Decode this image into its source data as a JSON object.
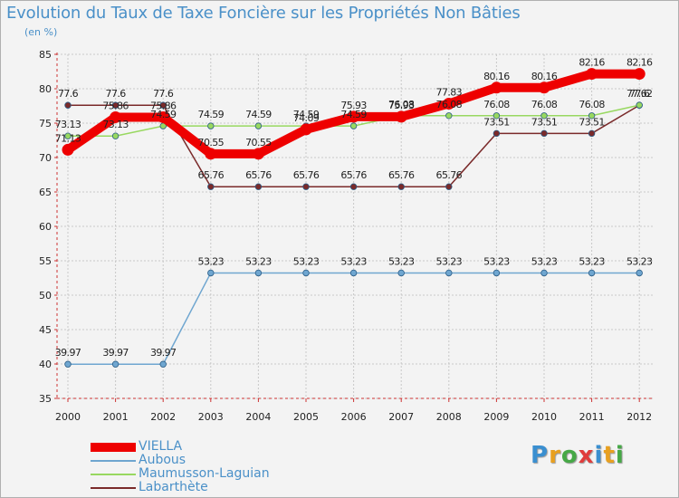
{
  "title": "Evolution du Taux de Taxe Foncière sur les Propriétés Non Bâties",
  "unit": "(en %)",
  "logo": "Proxiti",
  "logo_letters": [
    {
      "ch": "P",
      "color": "#3a8fd0"
    },
    {
      "ch": "r",
      "color": "#e8a020"
    },
    {
      "ch": "o",
      "color": "#46a846"
    },
    {
      "ch": "x",
      "color": "#e03c3c"
    },
    {
      "ch": "i",
      "color": "#3a8fd0"
    },
    {
      "ch": "t",
      "color": "#e8a020"
    },
    {
      "ch": "i",
      "color": "#46a846"
    }
  ],
  "chart_data": {
    "type": "line",
    "x": [
      "2000",
      "2001",
      "2002",
      "2003",
      "2004",
      "2005",
      "2006",
      "2007",
      "2008",
      "2009",
      "2010",
      "2011",
      "2012"
    ],
    "ylim": [
      35,
      85
    ],
    "yticks": [
      35,
      40,
      45,
      50,
      55,
      60,
      65,
      70,
      75,
      80,
      85
    ],
    "grid": true,
    "series": [
      {
        "name": "VIELLA",
        "color": "#ee0000",
        "values": [
          71.13,
          75.86,
          75.86,
          70.55,
          70.55,
          74.09,
          75.93,
          75.93,
          77.83,
          80.16,
          80.16,
          82.16,
          82.16
        ],
        "labels": [
          "71.13",
          "75.86",
          "75.86",
          "70.55",
          "70.55",
          "74.09",
          "75.93",
          "75.93",
          "77.83",
          "80.16",
          "80.16",
          "82.16",
          "82.16"
        ]
      },
      {
        "name": "Aubous",
        "color": "#6fa6d0",
        "values": [
          39.97,
          39.97,
          39.97,
          53.23,
          53.23,
          53.23,
          53.23,
          53.23,
          53.23,
          53.23,
          53.23,
          53.23,
          53.23
        ],
        "labels": [
          "39.97",
          "39.97",
          "39.97",
          "53.23",
          "53.23",
          "53.23",
          "53.23",
          "53.23",
          "53.23",
          "53.23",
          "53.23",
          "53.23",
          "53.23"
        ]
      },
      {
        "name": "Maumusson-Laguian",
        "color": "#98d860",
        "values": [
          73.13,
          73.13,
          74.59,
          74.59,
          74.59,
          74.59,
          74.59,
          76.08,
          76.08,
          76.08,
          76.08,
          76.08,
          77.62
        ],
        "labels": [
          "73.13",
          "73.13",
          "74.59",
          "74.59",
          "74.59",
          "74.59",
          "74.59",
          "76.08",
          "76.08",
          "76.08",
          "76.08",
          "76.08",
          "77.62"
        ]
      },
      {
        "name": "Labarthète",
        "color": "#7a2a2a",
        "values": [
          77.6,
          77.6,
          77.6,
          65.76,
          65.76,
          65.76,
          65.76,
          65.76,
          65.76,
          73.51,
          73.51,
          73.51,
          77.6
        ],
        "labels": [
          "77.6",
          "77.6",
          "77.6",
          "65.76",
          "65.76",
          "65.76",
          "65.76",
          "65.76",
          "65.76",
          "73.51",
          "73.51",
          "73.51",
          "77.6"
        ]
      }
    ]
  }
}
